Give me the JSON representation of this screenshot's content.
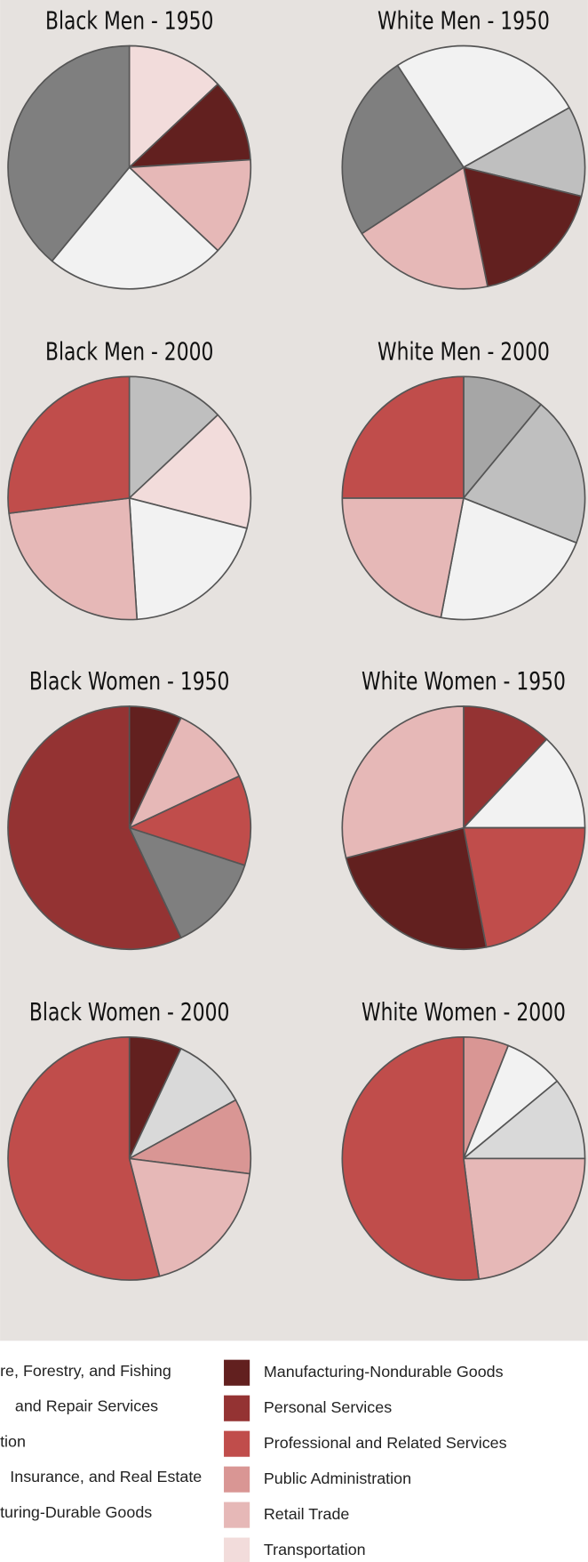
{
  "chart_data": [
    {
      "type": "pie",
      "title": "Black Men - 1950",
      "values": [
        13,
        11,
        13,
        24,
        39
      ],
      "colors": [
        "#f2dcdb",
        "#62201f",
        "#e6b8b7",
        "#f2f2f2",
        "#7f7f7f"
      ]
    },
    {
      "type": "pie",
      "title": "White Men - 1950",
      "startangle": -33,
      "values": [
        26,
        12,
        18,
        19,
        25
      ],
      "colors": [
        "#f2f2f2",
        "#bfbfbf",
        "#62201f",
        "#e6b8b7",
        "#7f7f7f"
      ]
    },
    {
      "type": "pie",
      "title": "Black Men - 2000",
      "values": [
        13,
        16,
        20,
        24,
        27
      ],
      "colors": [
        "#bfbfbf",
        "#f2dcdb",
        "#f2f2f2",
        "#e6b8b7",
        "#c04d4b"
      ]
    },
    {
      "type": "pie",
      "title": "White Men - 2000",
      "values": [
        11,
        20,
        22,
        22,
        25
      ],
      "colors": [
        "#a6a6a6",
        "#bfbfbf",
        "#f2f2f2",
        "#e6b8b7",
        "#c04d4b"
      ]
    },
    {
      "type": "pie",
      "title": "Black Women - 1950",
      "values": [
        7,
        11,
        12,
        13,
        57
      ],
      "colors": [
        "#62201f",
        "#e6b8b7",
        "#c04d4b",
        "#7f7f7f",
        "#943333"
      ]
    },
    {
      "type": "pie",
      "title": "White Women - 1950",
      "values": [
        12,
        13,
        22,
        24,
        29
      ],
      "colors": [
        "#943333",
        "#f2f2f2",
        "#c04d4b",
        "#62201f",
        "#e6b8b7"
      ]
    },
    {
      "type": "pie",
      "title": "Black Women - 2000",
      "values": [
        7,
        10,
        10,
        19,
        54
      ],
      "colors": [
        "#62201f",
        "#d9d9d9",
        "#d99694",
        "#e6b8b7",
        "#c04d4b"
      ]
    },
    {
      "type": "pie",
      "title": "White Women - 2000",
      "values": [
        6,
        8,
        11,
        23,
        52
      ],
      "colors": [
        "#d99694",
        "#f2f2f2",
        "#d9d9d9",
        "#e6b8b7",
        "#c04d4b"
      ]
    }
  ],
  "legend_left": [
    "re, Forestry, and Fishing",
    "and Repair Services",
    "tion",
    "Insurance, and Real Estate",
    "turing-Durable Goods"
  ],
  "legend_right": [
    {
      "label": "Manufacturing-Nondurable Goods",
      "color": "#62201f"
    },
    {
      "label": "Personal Services",
      "color": "#943333"
    },
    {
      "label": "Professional and Related Services",
      "color": "#c04d4b"
    },
    {
      "label": "Public Administration",
      "color": "#d99694"
    },
    {
      "label": "Retail Trade",
      "color": "#e6b8b7"
    },
    {
      "label": "Transportation",
      "color": "#f2dcdb"
    }
  ]
}
